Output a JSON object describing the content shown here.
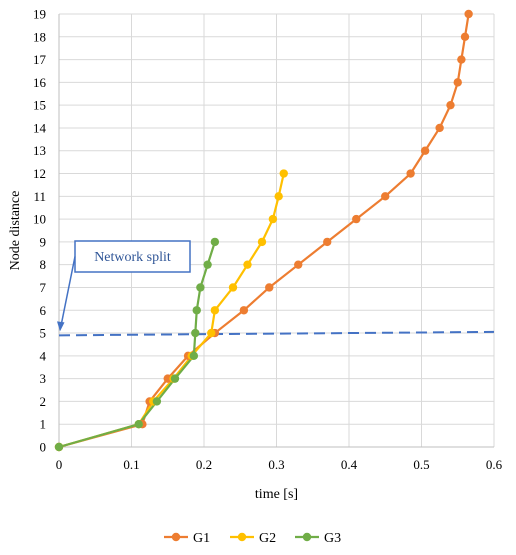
{
  "chart_data": {
    "type": "line",
    "title": "",
    "xlabel": "time [s]",
    "ylabel": "Node distance",
    "xlim": [
      0,
      0.6
    ],
    "ylim": [
      0,
      19
    ],
    "x_ticks": [
      0,
      0.1,
      0.2,
      0.3,
      0.4,
      0.5,
      0.6
    ],
    "x_tick_labels": [
      "0",
      "0.1",
      "0.2",
      "0.3",
      "0.4",
      "0.5",
      "0.6"
    ],
    "y_ticks": [
      0,
      1,
      2,
      3,
      4,
      5,
      6,
      7,
      8,
      9,
      10,
      11,
      12,
      13,
      14,
      15,
      16,
      17,
      18,
      19
    ],
    "y_tick_labels": [
      "0",
      "1",
      "2",
      "3",
      "4",
      "5",
      "6",
      "7",
      "8",
      "9",
      "10",
      "11",
      "12",
      "13",
      "14",
      "15",
      "16",
      "17",
      "18",
      "19"
    ],
    "grid": true,
    "legend_position": "bottom",
    "series": [
      {
        "name": "G1",
        "color": "#ED7D31",
        "points": [
          [
            0,
            0
          ],
          [
            0.115,
            1
          ],
          [
            0.125,
            2
          ],
          [
            0.15,
            3
          ],
          [
            0.178,
            4
          ],
          [
            0.215,
            5
          ],
          [
            0.255,
            6
          ],
          [
            0.29,
            7
          ],
          [
            0.33,
            8
          ],
          [
            0.37,
            9
          ],
          [
            0.41,
            10
          ],
          [
            0.45,
            11
          ],
          [
            0.485,
            12
          ],
          [
            0.505,
            13
          ],
          [
            0.525,
            14
          ],
          [
            0.54,
            15
          ],
          [
            0.55,
            16
          ],
          [
            0.555,
            17
          ],
          [
            0.56,
            18
          ],
          [
            0.565,
            19
          ]
        ]
      },
      {
        "name": "G2",
        "color": "#FFC000",
        "points": [
          [
            0,
            0
          ],
          [
            0.11,
            1
          ],
          [
            0.13,
            2
          ],
          [
            0.158,
            3
          ],
          [
            0.183,
            4
          ],
          [
            0.21,
            5
          ],
          [
            0.215,
            6
          ],
          [
            0.24,
            7
          ],
          [
            0.26,
            8
          ],
          [
            0.28,
            9
          ],
          [
            0.295,
            10
          ],
          [
            0.303,
            11
          ],
          [
            0.31,
            12
          ]
        ]
      },
      {
        "name": "G3",
        "color": "#70AD47",
        "points": [
          [
            0,
            0
          ],
          [
            0.11,
            1
          ],
          [
            0.135,
            2
          ],
          [
            0.16,
            3
          ],
          [
            0.186,
            4
          ],
          [
            0.188,
            5
          ],
          [
            0.19,
            6
          ],
          [
            0.195,
            7
          ],
          [
            0.205,
            8
          ],
          [
            0.215,
            9
          ]
        ]
      }
    ],
    "annotations": [
      {
        "text": "Network split",
        "color": "#2F5597",
        "reference_line": {
          "style": "dashed",
          "color": "#4472C4",
          "from": [
            0,
            4.9
          ],
          "to": [
            0.6,
            5.05
          ]
        },
        "arrow_target": [
          0,
          4.9
        ]
      }
    ]
  }
}
